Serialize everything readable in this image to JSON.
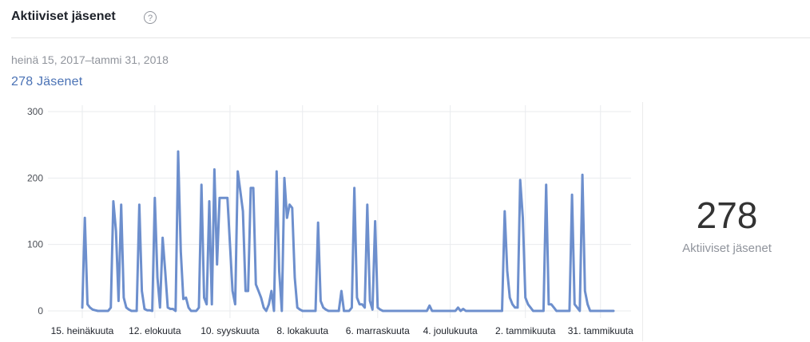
{
  "header": {
    "title": "Aktiiviset jäsenet",
    "help_glyph": "?"
  },
  "date_range": "heinä 15, 2017–tammi 31, 2018",
  "members_summary": "278 Jäsenet",
  "summary": {
    "value": "278",
    "label": "Aktiiviset jäsenet"
  },
  "colors": {
    "line": "#6d8fcd",
    "accent": "#4a72b5",
    "grid": "#e9ebee"
  },
  "chart_data": {
    "type": "line",
    "ylim": [
      0,
      300
    ],
    "yticks": [
      "0",
      "100",
      "200",
      "300"
    ],
    "grid": true,
    "x_tick_labels": [
      "15. heinäkuuta",
      "12. elokuuta",
      "10. syyskuuta",
      "8. lokakuuta",
      "6. marraskuuta",
      "4. joulukuuta",
      "2. tammikuuta",
      "31. tammikuuta"
    ],
    "x_tick_indices": [
      0,
      28,
      57,
      85,
      114,
      142,
      171,
      200
    ],
    "values": [
      5,
      140,
      10,
      5,
      2,
      1,
      0,
      0,
      0,
      0,
      0,
      5,
      165,
      120,
      15,
      160,
      20,
      5,
      2,
      0,
      0,
      0,
      160,
      30,
      3,
      1,
      1,
      0,
      170,
      50,
      5,
      110,
      60,
      5,
      3,
      3,
      0,
      240,
      90,
      18,
      20,
      5,
      0,
      0,
      0,
      5,
      190,
      20,
      10,
      165,
      10,
      213,
      70,
      170,
      170,
      170,
      170,
      100,
      30,
      10,
      210,
      180,
      150,
      30,
      30,
      185,
      185,
      40,
      30,
      20,
      5,
      0,
      10,
      30,
      0,
      210,
      60,
      0,
      200,
      140,
      160,
      155,
      50,
      5,
      2,
      0,
      0,
      0,
      0,
      0,
      0,
      133,
      15,
      5,
      2,
      0,
      0,
      0,
      0,
      0,
      30,
      0,
      0,
      0,
      5,
      185,
      20,
      10,
      10,
      5,
      160,
      15,
      2,
      135,
      5,
      2,
      0,
      0,
      0,
      0,
      0,
      0,
      0,
      0,
      0,
      0,
      0,
      0,
      0,
      0,
      0,
      0,
      0,
      0,
      8,
      0,
      0,
      0,
      0,
      0,
      0,
      0,
      0,
      0,
      0,
      5,
      0,
      3,
      0,
      0,
      0,
      0,
      0,
      0,
      0,
      0,
      0,
      0,
      0,
      0,
      0,
      0,
      0,
      150,
      60,
      20,
      10,
      5,
      5,
      197,
      140,
      20,
      10,
      5,
      0,
      0,
      0,
      0,
      0,
      190,
      10,
      10,
      5,
      0,
      0,
      0,
      0,
      0,
      0,
      175,
      10,
      5,
      0,
      205,
      30,
      10,
      0,
      0,
      0,
      0,
      0,
      0,
      0,
      0,
      0,
      0
    ]
  }
}
